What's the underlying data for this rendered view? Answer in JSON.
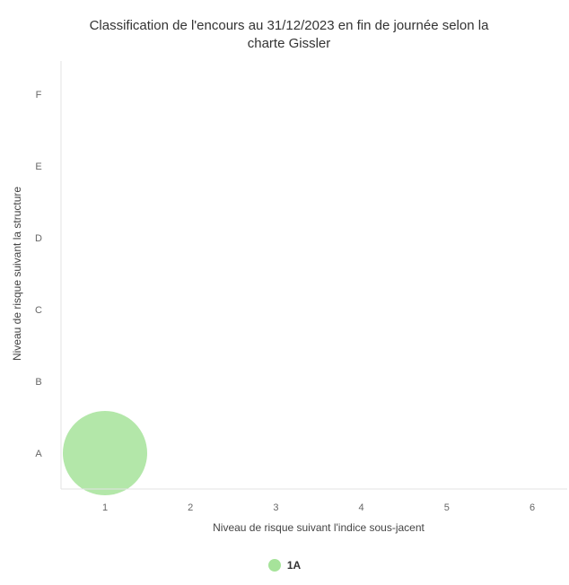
{
  "chart_data": {
    "type": "scatter",
    "title_line1": "Classification de l'encours au 31/12/2023 en fin de journée selon la",
    "title_line2": "charte Gissler",
    "xlabel": "Niveau de risque suivant l'indice sous-jacent",
    "ylabel": "Niveau de risque suivant la structure",
    "x_ticks": [
      "1",
      "2",
      "3",
      "4",
      "5",
      "6"
    ],
    "y_categories": [
      "A",
      "B",
      "C",
      "D",
      "E",
      "F"
    ],
    "series": [
      {
        "name": "1A",
        "color": "#a6e39a",
        "points": [
          {
            "x": 1,
            "y": "A"
          }
        ]
      }
    ],
    "legend_position": "bottom-center"
  }
}
